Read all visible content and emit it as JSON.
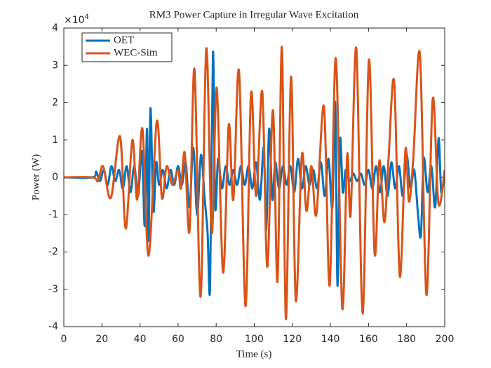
{
  "chart_data": {
    "type": "line",
    "title": "RM3 Power Capture in Irregular Wave Excitation",
    "x_label": "Time (s)",
    "y_label": "Power (W)",
    "y_multiplier": {
      "base": "×10",
      "exponent": "4"
    },
    "xlim": [
      0,
      200
    ],
    "xticks": [
      0,
      20,
      40,
      60,
      80,
      100,
      120,
      140,
      160,
      180,
      200
    ],
    "ylim": [
      -4,
      4
    ],
    "yticks": [
      -4,
      -3,
      -2,
      -1,
      0,
      1,
      2,
      3,
      4
    ],
    "grid": false,
    "legend": "upper-left",
    "series": [
      {
        "name": "OET",
        "color": "#0072BD",
        "x": [
          0,
          15,
          17,
          19,
          21,
          23,
          25,
          27,
          29,
          31,
          33,
          35,
          37,
          39,
          41,
          42.5,
          43.7,
          44.5,
          45.5,
          47,
          48.5,
          50,
          52,
          54,
          56,
          58,
          60,
          62,
          64,
          66,
          68,
          70,
          72,
          74,
          75.5,
          76.8,
          78.3,
          79.5,
          81,
          83,
          85,
          87,
          89,
          91,
          93,
          95,
          97,
          99,
          101,
          103,
          105,
          106.3,
          107.8,
          109.5,
          111,
          113,
          115,
          117,
          119,
          121,
          123,
          125,
          127,
          129,
          131,
          133,
          135,
          137,
          139,
          141,
          142.5,
          143.7,
          145,
          146.5,
          148,
          150,
          152,
          154,
          156,
          158,
          160,
          162,
          164,
          166,
          168,
          170,
          172,
          174,
          176,
          178,
          180,
          182,
          184,
          186,
          187.5,
          189,
          191,
          193,
          195,
          196.8,
          198.2,
          200
        ],
        "values": [
          0,
          0,
          0.15,
          -0.1,
          0.2,
          -0.2,
          0.3,
          -0.1,
          0.2,
          -0.3,
          0.3,
          -0.4,
          0.3,
          -0.5,
          0.7,
          -1.3,
          1.3,
          -1.7,
          1.85,
          -0.9,
          0.4,
          -0.2,
          0.2,
          -0.3,
          0.2,
          -0.2,
          0.3,
          -0.2,
          0.4,
          -0.8,
          0.8,
          -1.0,
          0.6,
          -0.6,
          -1.5,
          -2.95,
          3.35,
          -0.8,
          0.5,
          -0.3,
          0.3,
          -0.2,
          0.2,
          -0.2,
          0.3,
          -0.2,
          0.3,
          -0.3,
          0.4,
          -0.6,
          0.8,
          -1.4,
          1.3,
          -0.6,
          0.4,
          -0.3,
          0.3,
          -0.2,
          0.3,
          -0.4,
          0.5,
          -0.3,
          0.3,
          -0.2,
          0.2,
          -0.3,
          0.4,
          -0.5,
          0.5,
          -0.8,
          2.0,
          -2.9,
          1.0,
          -0.4,
          0.2,
          -0.1,
          0.1,
          -0.1,
          0.1,
          -0.2,
          0.2,
          -0.3,
          0.3,
          -0.4,
          0.3,
          -0.5,
          0.4,
          -0.3,
          0.3,
          -0.5,
          0.6,
          -0.3,
          0.2,
          -1.0,
          -1.55,
          0.5,
          -0.4,
          0.3,
          -0.8,
          1.05,
          -0.4,
          0.2
        ]
      },
      {
        "name": "WEC-Sim",
        "color": "#D95319",
        "x": [
          0,
          15,
          18,
          20.6,
          24.7,
          29.5,
          32.5,
          36,
          38.5,
          41.3,
          44.5,
          48.8,
          51.5,
          54,
          57,
          60,
          61.5,
          63.5,
          66,
          68.6,
          71.8,
          74.8,
          77.7,
          80.3,
          83.6,
          86.6,
          89,
          92,
          95.4,
          98.3,
          101,
          104.2,
          106.8,
          109.8,
          112.2,
          114.5,
          116.6,
          119.3,
          121.8,
          125,
          127.4,
          130,
          132.6,
          136.6,
          139.6,
          142.8,
          146.2,
          148.8,
          150.6,
          153.6,
          156.9,
          160.2,
          163.2,
          165.7,
          168.3,
          170.5,
          173.5,
          176.4,
          179.4,
          181.2,
          183.5,
          187,
          190.4,
          193.7,
          196.7,
          200
        ],
        "values": [
          0,
          0,
          -0.1,
          0.3,
          -0.55,
          1.1,
          -1.37,
          1.0,
          -0.6,
          1.3,
          -2.1,
          1.5,
          -0.55,
          0.3,
          -0.2,
          0.2,
          -0.3,
          0.66,
          -1.45,
          2.9,
          -3.2,
          3.45,
          -1.5,
          2.4,
          -2.55,
          1.4,
          -0.6,
          2.85,
          -3.45,
          2.25,
          -0.5,
          2.3,
          -2.4,
          1.8,
          -2.8,
          3.5,
          -3.8,
          2.7,
          -3.3,
          0.6,
          -0.9,
          0.3,
          -1.0,
          1.9,
          -2.9,
          3.2,
          -3.5,
          0.6,
          -1.0,
          3.45,
          -3.65,
          3.15,
          -2.05,
          0.45,
          -1.2,
          0.5,
          2.55,
          -2.65,
          0.75,
          -0.65,
          0.5,
          3.3,
          -3.15,
          2.1,
          -0.7,
          0.2
        ]
      }
    ]
  }
}
